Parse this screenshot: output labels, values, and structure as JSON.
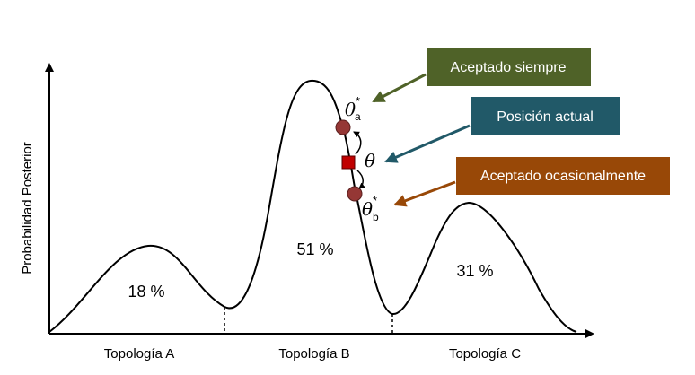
{
  "axes": {
    "ylabel": "Probabilidad Posterior"
  },
  "regions": [
    {
      "name": "Topología A",
      "percent": "18 %"
    },
    {
      "name": "Topología B",
      "percent": "51 %"
    },
    {
      "name": "Topología C",
      "percent": "31 %"
    }
  ],
  "symbols": {
    "theta": "θ",
    "theta_a_sub": "a",
    "theta_b_sub": "b",
    "star": "*"
  },
  "callouts": {
    "always": {
      "label": "Aceptado siempre",
      "color": "#4f6228"
    },
    "current": {
      "label": "Posición actual",
      "color": "#215968"
    },
    "sometimes": {
      "label": "Aceptado ocasionalmente",
      "color": "#984807"
    }
  },
  "colors": {
    "proposal_point": "#953735",
    "current_point": "#c00000",
    "curve": "#000000"
  }
}
